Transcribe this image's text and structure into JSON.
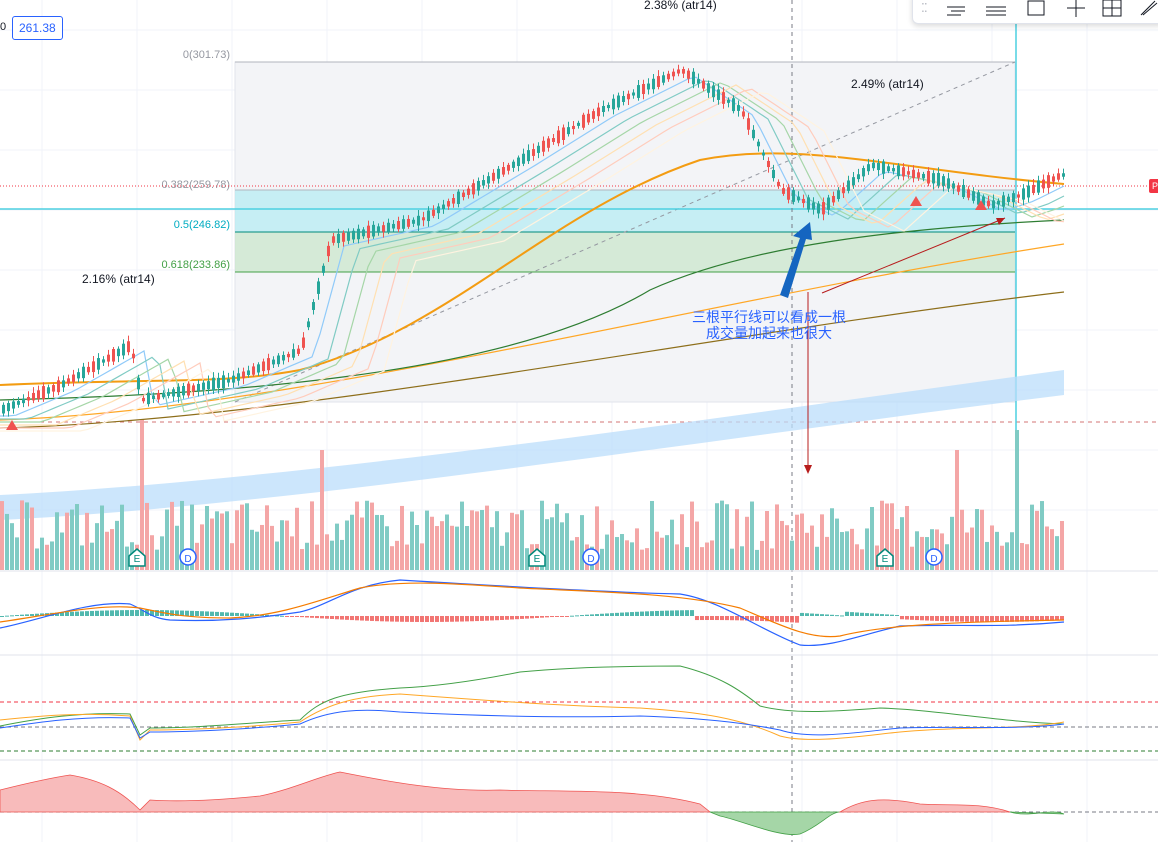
{
  "price_badge": {
    "prefix": "0",
    "value": "261.38"
  },
  "drawing_toolbar": {
    "tools": [
      "horizontal-lines-icon",
      "parallel-lines-icon",
      "rectangle-icon",
      "crosshair-icon",
      "grid-box-icon",
      "brush-icon"
    ]
  },
  "chart_data": {
    "type": "candlestick",
    "fib_levels": [
      {
        "label": "0(301.73)",
        "price": 301.73
      },
      {
        "label": "0.382(259.78)",
        "price": 259.78
      },
      {
        "label": "0.5(246.82)",
        "price": 246.82
      },
      {
        "label": "0.618(233.86)",
        "price": 233.86
      }
    ],
    "atr_labels": [
      "2.38% (atr14)",
      "2.49% (atr14)",
      "2.16% (atr14)"
    ],
    "annotation": {
      "line1": "三根平行线可以看成一根",
      "line2": "成交量加起来也很大"
    },
    "event_markers": [
      "E",
      "D",
      "E",
      "D",
      "E",
      "D"
    ],
    "colors": {
      "up": "#26a69a",
      "down": "#ef5350",
      "annotation": "#2962ff",
      "fib_band": "#b2ebf2",
      "fib_green": "#c8e6c9"
    },
    "right_tag": "P"
  }
}
